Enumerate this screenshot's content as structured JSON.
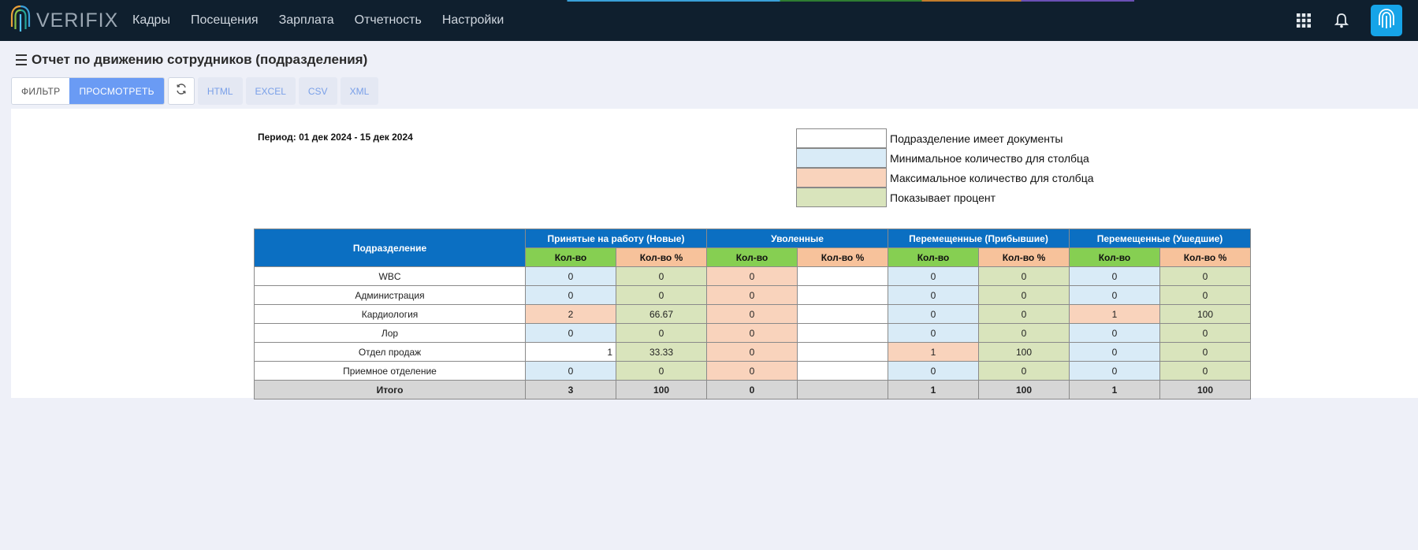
{
  "app": {
    "logo_text": "VERIFIX"
  },
  "nav": [
    "Кадры",
    "Посещения",
    "Зарплата",
    "Отчетность",
    "Настройки"
  ],
  "page": {
    "title": "Отчет по движению сотрудников (подразделения)"
  },
  "toolbar": {
    "filter": "ФИЛЬТР",
    "view": "ПРОСМОТРЕТЬ",
    "exports": [
      "HTML",
      "EXCEL",
      "CSV",
      "XML"
    ]
  },
  "report": {
    "period": "Период: 01 дек 2024 - 15 дек 2024",
    "legend": [
      {
        "label": "Подразделение имеет документы",
        "color": "#ffffff"
      },
      {
        "label": "Минимальное количество для столбца",
        "color": "#d9ebf7"
      },
      {
        "label": "Максимальное количество для столбца",
        "color": "#f9d3bc"
      },
      {
        "label": "Показывает процент",
        "color": "#d9e4bc"
      }
    ],
    "table": {
      "dept_header": "Подразделение",
      "groups": [
        "Принятые на работу (Новые)",
        "Уволенные",
        "Перемещенные (Прибывшие)",
        "Перемещенные (Ушедшие)"
      ],
      "sub_count": "Кол-во",
      "sub_pct": "Кол-во %",
      "rows": [
        {
          "dept": "WBC",
          "v": [
            "0",
            "0",
            "0",
            "",
            "0",
            "0",
            "0",
            "0"
          ]
        },
        {
          "dept": "Администрация",
          "v": [
            "0",
            "0",
            "0",
            "",
            "0",
            "0",
            "0",
            "0"
          ]
        },
        {
          "dept": "Кардиология",
          "v": [
            "2",
            "66.67",
            "0",
            "",
            "0",
            "0",
            "1",
            "100"
          ]
        },
        {
          "dept": "Лор",
          "v": [
            "0",
            "0",
            "0",
            "",
            "0",
            "0",
            "0",
            "0"
          ]
        },
        {
          "dept": "Отдел продаж",
          "v": [
            "1",
            "33.33",
            "0",
            "",
            "1",
            "100",
            "0",
            "0"
          ]
        },
        {
          "dept": "Приемное отделение",
          "v": [
            "0",
            "0",
            "0",
            "",
            "0",
            "0",
            "0",
            "0"
          ]
        }
      ],
      "total": {
        "dept": "Итого",
        "v": [
          "3",
          "100",
          "0",
          "",
          "1",
          "100",
          "1",
          "100"
        ]
      }
    }
  }
}
